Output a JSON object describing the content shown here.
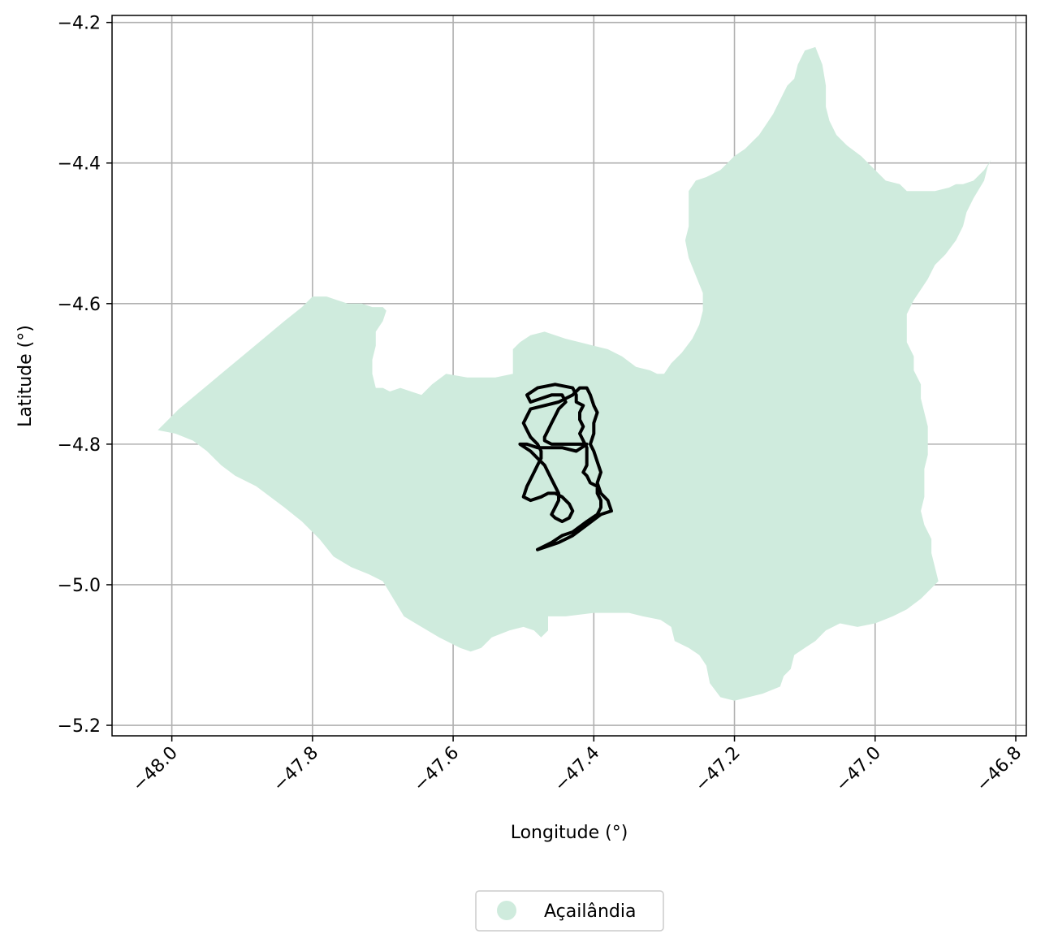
{
  "chart_data": {
    "type": "map",
    "xlabel": "Longitude (°)",
    "ylabel": "Latitude (°)",
    "xlim": [
      -48.085,
      -46.785
    ],
    "ylim": [
      -5.215,
      -4.19
    ],
    "x_ticks": [
      -48.0,
      -47.8,
      -47.6,
      -47.4,
      -47.2,
      -47.0,
      -46.8
    ],
    "x_tick_labels": [
      "−48.0",
      "−47.8",
      "−47.6",
      "−47.4",
      "−47.2",
      "−47.0",
      "−46.8"
    ],
    "y_ticks": [
      -4.2,
      -4.4,
      -4.6,
      -4.8,
      -5.0,
      -5.2
    ],
    "y_tick_labels": [
      "−4.2",
      "−4.4",
      "−4.6",
      "−4.8",
      "−5.0",
      "−5.2"
    ],
    "grid": true,
    "legend": {
      "position": "bottom-center",
      "entries": [
        {
          "label": "Açailândia",
          "color": "#cfebdd"
        }
      ]
    },
    "region_name": "Açailândia",
    "region_fill": "#cfebdd",
    "region_boundary": [
      [
        -48.02,
        -4.78
      ],
      [
        -47.995,
        -4.785
      ],
      [
        -47.97,
        -4.795
      ],
      [
        -47.95,
        -4.81
      ],
      [
        -47.93,
        -4.83
      ],
      [
        -47.91,
        -4.845
      ],
      [
        -47.88,
        -4.86
      ],
      [
        -47.86,
        -4.875
      ],
      [
        -47.84,
        -4.89
      ],
      [
        -47.815,
        -4.91
      ],
      [
        -47.79,
        -4.935
      ],
      [
        -47.77,
        -4.96
      ],
      [
        -47.745,
        -4.975
      ],
      [
        -47.72,
        -4.985
      ],
      [
        -47.7,
        -4.995
      ],
      [
        -47.685,
        -5.02
      ],
      [
        -47.67,
        -5.045
      ],
      [
        -47.645,
        -5.06
      ],
      [
        -47.62,
        -5.075
      ],
      [
        -47.59,
        -5.09
      ],
      [
        -47.575,
        -5.095
      ],
      [
        -47.56,
        -5.09
      ],
      [
        -47.545,
        -5.075
      ],
      [
        -47.52,
        -5.065
      ],
      [
        -47.5,
        -5.06
      ],
      [
        -47.485,
        -5.065
      ],
      [
        -47.475,
        -5.075
      ],
      [
        -47.465,
        -5.065
      ],
      [
        -47.465,
        -5.045
      ],
      [
        -47.44,
        -5.045
      ],
      [
        -47.4,
        -5.04
      ],
      [
        -47.37,
        -5.04
      ],
      [
        -47.35,
        -5.04
      ],
      [
        -47.33,
        -5.045
      ],
      [
        -47.305,
        -5.05
      ],
      [
        -47.29,
        -5.06
      ],
      [
        -47.285,
        -5.08
      ],
      [
        -47.265,
        -5.09
      ],
      [
        -47.25,
        -5.1
      ],
      [
        -47.24,
        -5.115
      ],
      [
        -47.235,
        -5.14
      ],
      [
        -47.22,
        -5.16
      ],
      [
        -47.2,
        -5.165
      ],
      [
        -47.18,
        -5.16
      ],
      [
        -47.16,
        -5.155
      ],
      [
        -47.135,
        -5.145
      ],
      [
        -47.13,
        -5.13
      ],
      [
        -47.12,
        -5.12
      ],
      [
        -47.115,
        -5.1
      ],
      [
        -47.1,
        -5.09
      ],
      [
        -47.085,
        -5.08
      ],
      [
        -47.07,
        -5.065
      ],
      [
        -47.05,
        -5.055
      ],
      [
        -47.025,
        -5.06
      ],
      [
        -47.0,
        -5.055
      ],
      [
        -46.975,
        -5.045
      ],
      [
        -46.955,
        -5.035
      ],
      [
        -46.935,
        -5.02
      ],
      [
        -46.92,
        -5.005
      ],
      [
        -46.91,
        -4.995
      ],
      [
        -46.915,
        -4.975
      ],
      [
        -46.92,
        -4.955
      ],
      [
        -46.92,
        -4.935
      ],
      [
        -46.93,
        -4.915
      ],
      [
        -46.935,
        -4.895
      ],
      [
        -46.93,
        -4.875
      ],
      [
        -46.93,
        -4.855
      ],
      [
        -46.93,
        -4.835
      ],
      [
        -46.925,
        -4.815
      ],
      [
        -46.925,
        -4.795
      ],
      [
        -46.925,
        -4.775
      ],
      [
        -46.93,
        -4.755
      ],
      [
        -46.935,
        -4.735
      ],
      [
        -46.935,
        -4.715
      ],
      [
        -46.945,
        -4.695
      ],
      [
        -46.945,
        -4.675
      ],
      [
        -46.955,
        -4.655
      ],
      [
        -46.955,
        -4.635
      ],
      [
        -46.955,
        -4.615
      ],
      [
        -46.945,
        -4.595
      ],
      [
        -46.935,
        -4.58
      ],
      [
        -46.925,
        -4.565
      ],
      [
        -46.915,
        -4.545
      ],
      [
        -46.9,
        -4.53
      ],
      [
        -46.885,
        -4.51
      ],
      [
        -46.875,
        -4.49
      ],
      [
        -46.87,
        -4.47
      ],
      [
        -46.86,
        -4.45
      ],
      [
        -46.845,
        -4.425
      ],
      [
        -46.84,
        -4.405
      ],
      [
        -46.835,
        -4.395
      ],
      [
        -46.845,
        -4.41
      ],
      [
        -46.86,
        -4.425
      ],
      [
        -46.875,
        -4.43
      ],
      [
        -46.885,
        -4.43
      ],
      [
        -46.895,
        -4.435
      ],
      [
        -46.915,
        -4.44
      ],
      [
        -46.935,
        -4.44
      ],
      [
        -46.955,
        -4.44
      ],
      [
        -46.965,
        -4.43
      ],
      [
        -46.985,
        -4.425
      ],
      [
        -47.0,
        -4.41
      ],
      [
        -47.02,
        -4.39
      ],
      [
        -47.04,
        -4.375
      ],
      [
        -47.055,
        -4.36
      ],
      [
        -47.065,
        -4.34
      ],
      [
        -47.07,
        -4.32
      ],
      [
        -47.07,
        -4.29
      ],
      [
        -47.075,
        -4.26
      ],
      [
        -47.085,
        -4.235
      ],
      [
        -47.1,
        -4.24
      ],
      [
        -47.11,
        -4.26
      ],
      [
        -47.115,
        -4.28
      ],
      [
        -47.125,
        -4.29
      ],
      [
        -47.145,
        -4.33
      ],
      [
        -47.165,
        -4.36
      ],
      [
        -47.185,
        -4.38
      ],
      [
        -47.2,
        -4.39
      ],
      [
        -47.22,
        -4.41
      ],
      [
        -47.24,
        -4.42
      ],
      [
        -47.255,
        -4.425
      ],
      [
        -47.265,
        -4.44
      ],
      [
        -47.265,
        -4.46
      ],
      [
        -47.265,
        -4.49
      ],
      [
        -47.27,
        -4.51
      ],
      [
        -47.265,
        -4.535
      ],
      [
        -47.255,
        -4.56
      ],
      [
        -47.245,
        -4.585
      ],
      [
        -47.245,
        -4.61
      ],
      [
        -47.25,
        -4.63
      ],
      [
        -47.26,
        -4.65
      ],
      [
        -47.275,
        -4.67
      ],
      [
        -47.29,
        -4.685
      ],
      [
        -47.3,
        -4.7
      ],
      [
        -47.31,
        -4.7
      ],
      [
        -47.32,
        -4.695
      ],
      [
        -47.34,
        -4.69
      ],
      [
        -47.36,
        -4.675
      ],
      [
        -47.38,
        -4.665
      ],
      [
        -47.4,
        -4.66
      ],
      [
        -47.42,
        -4.655
      ],
      [
        -47.44,
        -4.65
      ],
      [
        -47.455,
        -4.645
      ],
      [
        -47.47,
        -4.64
      ],
      [
        -47.49,
        -4.645
      ],
      [
        -47.505,
        -4.655
      ],
      [
        -47.515,
        -4.665
      ],
      [
        -47.515,
        -4.69
      ],
      [
        -47.515,
        -4.7
      ],
      [
        -47.54,
        -4.705
      ],
      [
        -47.56,
        -4.705
      ],
      [
        -47.58,
        -4.705
      ],
      [
        -47.61,
        -4.7
      ],
      [
        -47.63,
        -4.715
      ],
      [
        -47.645,
        -4.73
      ],
      [
        -47.66,
        -4.725
      ],
      [
        -47.675,
        -4.72
      ],
      [
        -47.69,
        -4.725
      ],
      [
        -47.7,
        -4.72
      ],
      [
        -47.71,
        -4.72
      ],
      [
        -47.715,
        -4.7
      ],
      [
        -47.715,
        -4.68
      ],
      [
        -47.71,
        -4.66
      ],
      [
        -47.71,
        -4.64
      ],
      [
        -47.7,
        -4.625
      ],
      [
        -47.695,
        -4.61
      ],
      [
        -47.7,
        -4.605
      ],
      [
        -47.715,
        -4.605
      ],
      [
        -47.73,
        -4.6
      ],
      [
        -47.75,
        -4.6
      ],
      [
        -47.765,
        -4.595
      ],
      [
        -47.78,
        -4.59
      ],
      [
        -47.8,
        -4.59
      ],
      [
        -47.815,
        -4.605
      ],
      [
        -47.84,
        -4.625
      ],
      [
        -47.87,
        -4.65
      ],
      [
        -47.9,
        -4.675
      ],
      [
        -47.93,
        -4.7
      ],
      [
        -47.96,
        -4.725
      ],
      [
        -47.99,
        -4.75
      ],
      [
        -48.02,
        -4.78
      ]
    ],
    "track": [
      [
        -47.48,
        -4.95
      ],
      [
        -47.46,
        -4.94
      ],
      [
        -47.445,
        -4.93
      ],
      [
        -47.43,
        -4.925
      ],
      [
        -47.41,
        -4.91
      ],
      [
        -47.395,
        -4.9
      ],
      [
        -47.39,
        -4.89
      ],
      [
        -47.39,
        -4.88
      ],
      [
        -47.395,
        -4.87
      ],
      [
        -47.395,
        -4.86
      ],
      [
        -47.405,
        -4.855
      ],
      [
        -47.41,
        -4.845
      ],
      [
        -47.415,
        -4.84
      ],
      [
        -47.41,
        -4.83
      ],
      [
        -47.41,
        -4.815
      ],
      [
        -47.41,
        -4.805
      ],
      [
        -47.415,
        -4.795
      ],
      [
        -47.42,
        -4.785
      ],
      [
        -47.415,
        -4.775
      ],
      [
        -47.42,
        -4.765
      ],
      [
        -47.42,
        -4.755
      ],
      [
        -47.415,
        -4.745
      ],
      [
        -47.425,
        -4.74
      ],
      [
        -47.425,
        -4.73
      ],
      [
        -47.43,
        -4.72
      ],
      [
        -47.455,
        -4.715
      ],
      [
        -47.48,
        -4.72
      ],
      [
        -47.495,
        -4.73
      ],
      [
        -47.49,
        -4.74
      ],
      [
        -47.475,
        -4.735
      ],
      [
        -47.46,
        -4.73
      ],
      [
        -47.445,
        -4.73
      ],
      [
        -47.44,
        -4.74
      ],
      [
        -47.45,
        -4.75
      ],
      [
        -47.455,
        -4.76
      ],
      [
        -47.46,
        -4.77
      ],
      [
        -47.465,
        -4.78
      ],
      [
        -47.47,
        -4.79
      ],
      [
        -47.47,
        -4.795
      ],
      [
        -47.46,
        -4.8
      ],
      [
        -47.445,
        -4.8
      ],
      [
        -47.43,
        -4.8
      ],
      [
        -47.41,
        -4.8
      ],
      [
        -47.425,
        -4.81
      ],
      [
        -47.445,
        -4.805
      ],
      [
        -47.46,
        -4.805
      ],
      [
        -47.48,
        -4.805
      ],
      [
        -47.495,
        -4.8
      ],
      [
        -47.505,
        -4.8
      ],
      [
        -47.49,
        -4.81
      ],
      [
        -47.48,
        -4.82
      ],
      [
        -47.47,
        -4.83
      ],
      [
        -47.465,
        -4.84
      ],
      [
        -47.46,
        -4.85
      ],
      [
        -47.455,
        -4.86
      ],
      [
        -47.45,
        -4.87
      ],
      [
        -47.45,
        -4.88
      ],
      [
        -47.455,
        -4.89
      ],
      [
        -47.46,
        -4.9
      ],
      [
        -47.455,
        -4.905
      ],
      [
        -47.445,
        -4.91
      ],
      [
        -47.435,
        -4.905
      ],
      [
        -47.43,
        -4.895
      ],
      [
        -47.435,
        -4.885
      ],
      [
        -47.445,
        -4.875
      ],
      [
        -47.455,
        -4.87
      ],
      [
        -47.465,
        -4.87
      ],
      [
        -47.475,
        -4.875
      ],
      [
        -47.49,
        -4.88
      ],
      [
        -47.5,
        -4.875
      ],
      [
        -47.495,
        -4.86
      ],
      [
        -47.49,
        -4.85
      ],
      [
        -47.485,
        -4.84
      ],
      [
        -47.48,
        -4.83
      ],
      [
        -47.475,
        -4.82
      ],
      [
        -47.475,
        -4.81
      ],
      [
        -47.48,
        -4.8
      ],
      [
        -47.49,
        -4.79
      ],
      [
        -47.495,
        -4.78
      ],
      [
        -47.5,
        -4.77
      ],
      [
        -47.495,
        -4.76
      ],
      [
        -47.49,
        -4.75
      ],
      [
        -47.47,
        -4.745
      ],
      [
        -47.45,
        -4.74
      ],
      [
        -47.43,
        -4.73
      ],
      [
        -47.42,
        -4.72
      ],
      [
        -47.41,
        -4.72
      ],
      [
        -47.405,
        -4.73
      ],
      [
        -47.4,
        -4.745
      ],
      [
        -47.395,
        -4.755
      ],
      [
        -47.4,
        -4.77
      ],
      [
        -47.4,
        -4.785
      ],
      [
        -47.405,
        -4.8
      ],
      [
        -47.4,
        -4.81
      ],
      [
        -47.395,
        -4.825
      ],
      [
        -47.39,
        -4.84
      ],
      [
        -47.395,
        -4.855
      ],
      [
        -47.39,
        -4.87
      ],
      [
        -47.38,
        -4.88
      ],
      [
        -47.375,
        -4.895
      ],
      [
        -47.39,
        -4.9
      ],
      [
        -47.41,
        -4.915
      ],
      [
        -47.43,
        -4.93
      ],
      [
        -47.45,
        -4.94
      ],
      [
        -47.465,
        -4.945
      ],
      [
        -47.48,
        -4.95
      ]
    ]
  }
}
